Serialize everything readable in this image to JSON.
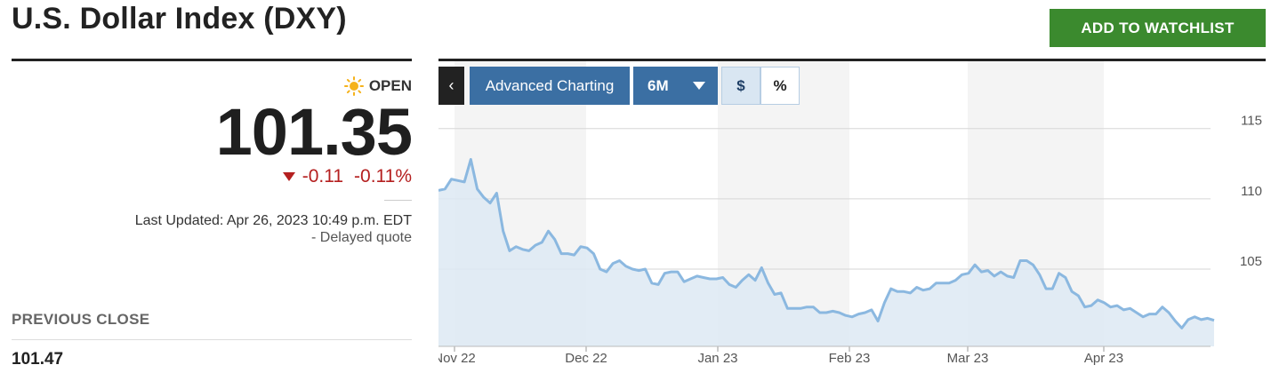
{
  "header": {
    "title": "U.S. Dollar Index (DXY)",
    "watchlist_label": "ADD TO WATCHLIST",
    "accent_color": "#3b8a2e"
  },
  "quote": {
    "market_status": "OPEN",
    "price": "101.35",
    "change": "-0.11",
    "change_percent": "-0.11%",
    "change_color": "#b52020",
    "last_updated": "Last Updated: Apr 26, 2023 10:49 p.m. EDT",
    "delayed": "-  Delayed quote"
  },
  "previous_close": {
    "label": "PREVIOUS CLOSE",
    "value": "101.47"
  },
  "chart_toolbar": {
    "back_icon": "chevron-left-icon",
    "advanced_label": "Advanced Charting",
    "range_label": "6M",
    "dollar_label": "$",
    "percent_label": "%",
    "button_color": "#3b6fa3"
  },
  "chart_data": {
    "type": "area",
    "x_ticks": [
      "Nov 22",
      "Dec 22",
      "Jan 23",
      "Feb 23",
      "Mar 23",
      "Apr 23"
    ],
    "y_ticks": [
      105,
      110,
      115
    ],
    "ylim": [
      99.5,
      116.5
    ],
    "series_color": "#8bb8e0",
    "fill_color": "#dde9f3",
    "values": [
      110.6,
      110.7,
      111.4,
      111.3,
      111.2,
      112.8,
      110.7,
      110.1,
      109.7,
      110.4,
      107.7,
      106.3,
      106.6,
      106.4,
      106.3,
      106.7,
      106.9,
      107.7,
      107.1,
      106.1,
      106.1,
      106.0,
      106.6,
      106.5,
      106.1,
      105.0,
      104.8,
      105.4,
      105.6,
      105.2,
      105.0,
      104.9,
      105.0,
      104.0,
      103.9,
      104.7,
      104.8,
      104.8,
      104.1,
      104.3,
      104.5,
      104.4,
      104.3,
      104.3,
      104.4,
      103.9,
      103.7,
      104.2,
      104.6,
      104.2,
      105.1,
      104.0,
      103.2,
      103.3,
      102.2,
      102.2,
      102.2,
      102.3,
      102.3,
      101.9,
      101.9,
      102.0,
      101.9,
      101.7,
      101.6,
      101.8,
      101.9,
      102.1,
      101.3,
      102.6,
      103.6,
      103.4,
      103.4,
      103.3,
      103.7,
      103.5,
      103.6,
      104.0,
      104.0,
      104.0,
      104.2,
      104.6,
      104.7,
      105.3,
      104.8,
      104.9,
      104.5,
      104.8,
      104.5,
      104.4,
      105.6,
      105.6,
      105.3,
      104.6,
      103.6,
      103.6,
      104.7,
      104.4,
      103.4,
      103.1,
      102.3,
      102.4,
      102.8,
      102.6,
      102.3,
      102.4,
      102.1,
      102.2,
      101.9,
      101.6,
      101.8,
      101.8,
      102.3,
      101.9,
      101.3,
      100.8,
      101.4,
      101.6,
      101.4,
      101.5,
      101.35
    ]
  }
}
